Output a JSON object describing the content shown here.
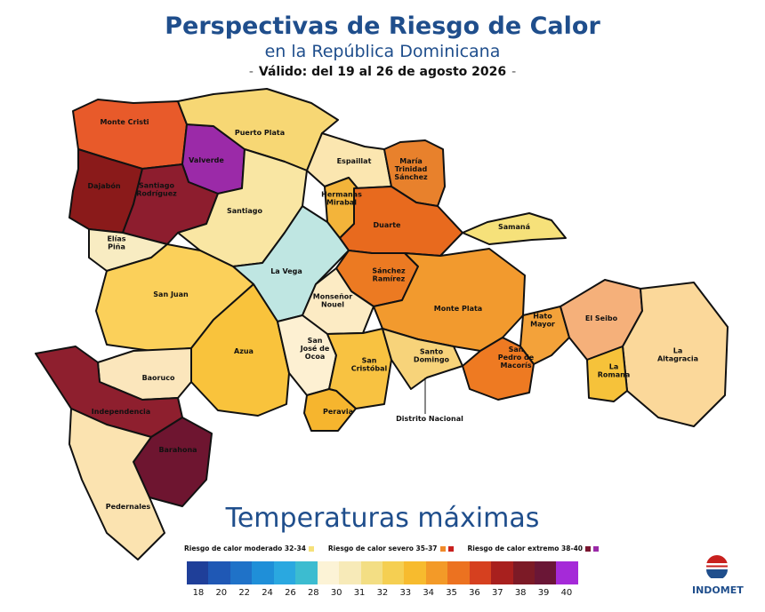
{
  "header": {
    "title": "Perspectivas de Riesgo de Calor",
    "subtitle": "en la República Dominicana",
    "validity": "Válido: del 19 al 26 de agosto 2026",
    "dash": "-"
  },
  "provinces": [
    {
      "id": "monte-cristi",
      "label": [
        "Monte Cristi"
      ],
      "color": "#e85a2a"
    },
    {
      "id": "dajabon",
      "label": [
        "Dajabón"
      ],
      "color": "#8a1a1a"
    },
    {
      "id": "valverde",
      "label": [
        "Valverde"
      ],
      "color": "#9b2aa8"
    },
    {
      "id": "puerto-plata",
      "label": [
        "Puerto Plata"
      ],
      "color": "#f7d774"
    },
    {
      "id": "santiago-rodriguez",
      "label": [
        "Santiago",
        "Rodríguez"
      ],
      "color": "#8d1d2e"
    },
    {
      "id": "santiago",
      "label": [
        "Santiago"
      ],
      "color": "#f9e6a3"
    },
    {
      "id": "espaillat",
      "label": [
        "Espaillat"
      ],
      "color": "#fbe6b0"
    },
    {
      "id": "hermanas-mirabal",
      "label": [
        "Hermanas",
        "Mirabal"
      ],
      "color": "#f3b43a"
    },
    {
      "id": "maria-trinidad-sanchez",
      "label": [
        "María",
        "Trinidad",
        "Sánchez"
      ],
      "color": "#e8812c"
    },
    {
      "id": "duarte",
      "label": [
        "Duarte"
      ],
      "color": "#e86a1e"
    },
    {
      "id": "samana",
      "label": [
        "Samaná"
      ],
      "color": "#f6e17a"
    },
    {
      "id": "elias-pina",
      "label": [
        "Elías",
        "Piña"
      ],
      "color": "#f8ecc2"
    },
    {
      "id": "la-vega",
      "label": [
        "La Vega"
      ],
      "color": "#bfe6e2"
    },
    {
      "id": "sanchez-ramirez",
      "label": [
        "Sánchez",
        "Ramírez"
      ],
      "color": "#ec7a22"
    },
    {
      "id": "san-juan",
      "label": [
        "San Juan"
      ],
      "color": "#fbd05a"
    },
    {
      "id": "monsenor-nouel",
      "label": [
        "Monseñor",
        "Nouel"
      ],
      "color": "#fcebc4"
    },
    {
      "id": "monte-plata",
      "label": [
        "Monte Plata"
      ],
      "color": "#f29a2e"
    },
    {
      "id": "hato-mayor",
      "label": [
        "Hato",
        "Mayor"
      ],
      "color": "#f3a23a"
    },
    {
      "id": "el-seibo",
      "label": [
        "El Seibo"
      ],
      "color": "#f5b07a"
    },
    {
      "id": "la-altagracia",
      "label": [
        "La",
        "Altagracia"
      ],
      "color": "#fbd89a"
    },
    {
      "id": "azua",
      "label": [
        "Azua"
      ],
      "color": "#f9c33c"
    },
    {
      "id": "san-jose-de-ocoa",
      "label": [
        "San",
        "José de",
        "Ocoa"
      ],
      "color": "#fdf0d2"
    },
    {
      "id": "san-cristobal",
      "label": [
        "San",
        "Cristóbal"
      ],
      "color": "#f8c241"
    },
    {
      "id": "santo-domingo",
      "label": [
        "Santo",
        "Domingo"
      ],
      "color": "#f7d37a"
    },
    {
      "id": "san-pedro-de-macoris",
      "label": [
        "San",
        "Pedro de",
        "Macorís"
      ],
      "color": "#ee7a22"
    },
    {
      "id": "la-romana",
      "label": [
        "La",
        "Romana"
      ],
      "color": "#f6c23a"
    },
    {
      "id": "baoruco",
      "label": [
        "Baoruco"
      ],
      "color": "#fbe6bc"
    },
    {
      "id": "independencia",
      "label": [
        "Independencia"
      ],
      "color": "#8e1f2e"
    },
    {
      "id": "peravia",
      "label": [
        "Peravia"
      ],
      "color": "#f6b52e"
    },
    {
      "id": "barahona",
      "label": [
        "Barahona"
      ],
      "color": "#6e1530"
    },
    {
      "id": "pedernales",
      "label": [
        "Pedernales"
      ],
      "color": "#fbe3b0"
    }
  ],
  "distrito_nacional_label": "Distrito Nacional",
  "legend": {
    "title": "Temperaturas máximas",
    "risk": [
      {
        "label": "Riesgo de calor moderado 32-34",
        "colors": [
          "#f6e17a"
        ]
      },
      {
        "label": "Riesgo de calor severo 35-37",
        "colors": [
          "#f08a2a",
          "#c8201e"
        ]
      },
      {
        "label": "Riesgo de calor extremo 38-40",
        "colors": [
          "#7a1530",
          "#9b2aa8"
        ]
      }
    ],
    "scale_colors": [
      "#1f3f99",
      "#1f58b5",
      "#1f72c8",
      "#1f8fd8",
      "#2aa8e0",
      "#3cbcd0",
      "#fcf3d6",
      "#f7eab8",
      "#f3de84",
      "#f5cf52",
      "#f7bb2e",
      "#f39a28",
      "#ec7220",
      "#d6401f",
      "#a8201e",
      "#7c1a26",
      "#6a1636",
      "#a52ad8"
    ],
    "ticks": [
      "18",
      "20",
      "22",
      "24",
      "26",
      "28",
      "30",
      "31",
      "32",
      "33",
      "34",
      "35",
      "36",
      "37",
      "38",
      "39",
      "40"
    ]
  },
  "logo": {
    "brand": "INDOMET",
    "colors": [
      "#c8201e",
      "#1f4e8c"
    ]
  }
}
